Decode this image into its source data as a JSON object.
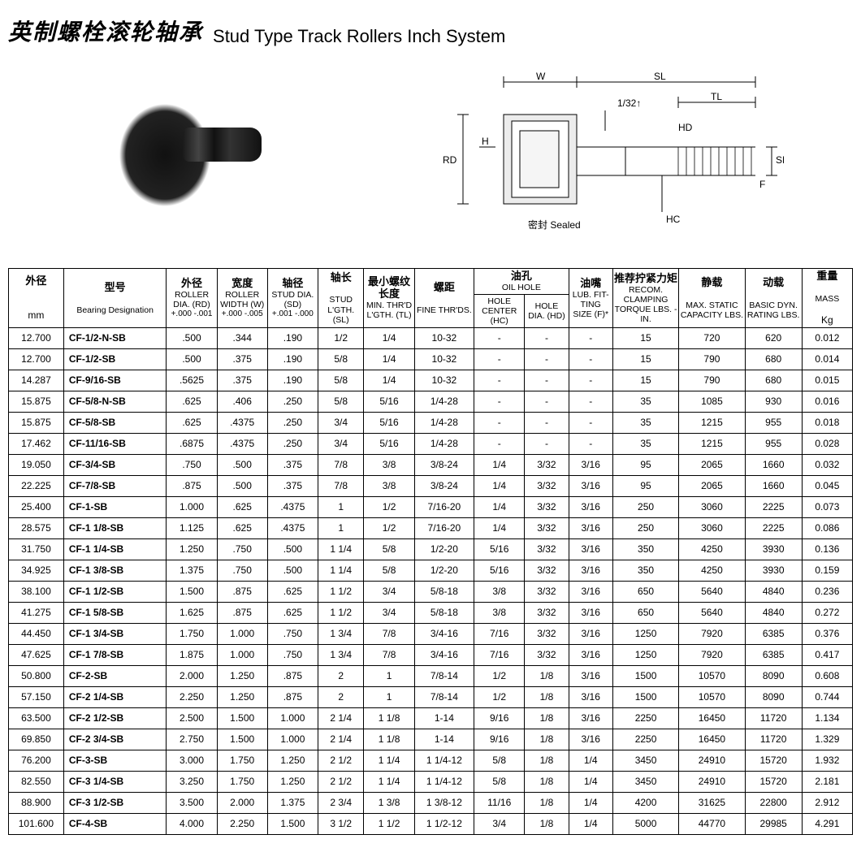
{
  "title": {
    "cn": "英制螺栓滚轮轴承",
    "en": "Stud Type Track Rollers Inch System"
  },
  "diagram_labels": {
    "W": "W",
    "SL": "SL",
    "TL": "TL",
    "HD": "HD",
    "SD": "SD",
    "F": "F",
    "H": "H",
    "RD": "RD",
    "HC": "HC",
    "tol": "1/32↑",
    "sealed_cn": "密封",
    "sealed_en": "Sealed"
  },
  "headers": {
    "c1": {
      "cn": "外径",
      "en": "",
      "unit": "mm"
    },
    "c2": {
      "cn": "型号",
      "en": "Bearing Designation",
      "unit": ""
    },
    "c3": {
      "cn": "外径",
      "en": "ROLLER DIA. (RD)",
      "sub": "+.000 -.001"
    },
    "c4": {
      "cn": "宽度",
      "en": "ROLLER WIDTH (W)",
      "sub": "+.000 -.005"
    },
    "c5": {
      "cn": "轴径",
      "en": "STUD DIA. (SD)",
      "sub": "+.001 -.000"
    },
    "c6": {
      "cn": "轴长",
      "en": "STUD L'GTH. (SL)"
    },
    "c7": {
      "cn": "最小螺纹长度",
      "en": "MIN. THR'D L'GTH. (TL)"
    },
    "c8": {
      "cn": "螺距",
      "en": "FINE THR'DS."
    },
    "c9": {
      "cn": "油孔",
      "en": "OIL HOLE"
    },
    "c9a": {
      "en": "HOLE CENTER (HC)"
    },
    "c9b": {
      "en": "HOLE DIA. (HD)"
    },
    "c10": {
      "cn": "油嘴",
      "en": "LUB. FIT-TING SIZE (F)*"
    },
    "c11": {
      "cn": "推荐拧紧力矩",
      "en": "RECOM. CLAMPING TORQUE LBS. - IN."
    },
    "c12": {
      "cn": "静载",
      "en": "MAX. STATIC CAPACITY LBS."
    },
    "c13": {
      "cn": "动载",
      "en": "BASIC DYN. RATING LBS."
    },
    "c14": {
      "cn": "重量",
      "en": "MASS",
      "unit": "Kg"
    }
  },
  "rows": [
    [
      "12.700",
      "CF-1/2-N-SB",
      ".500",
      ".344",
      ".190",
      "1/2",
      "1/4",
      "10-32",
      "-",
      "-",
      "-",
      "15",
      "720",
      "620",
      "0.012"
    ],
    [
      "12.700",
      "CF-1/2-SB",
      ".500",
      ".375",
      ".190",
      "5/8",
      "1/4",
      "10-32",
      "-",
      "-",
      "-",
      "15",
      "790",
      "680",
      "0.014"
    ],
    [
      "14.287",
      "CF-9/16-SB",
      ".5625",
      ".375",
      ".190",
      "5/8",
      "1/4",
      "10-32",
      "-",
      "-",
      "-",
      "15",
      "790",
      "680",
      "0.015"
    ],
    [
      "15.875",
      "CF-5/8-N-SB",
      ".625",
      ".406",
      ".250",
      "5/8",
      "5/16",
      "1/4-28",
      "-",
      "-",
      "-",
      "35",
      "1085",
      "930",
      "0.016"
    ],
    [
      "15.875",
      "CF-5/8-SB",
      ".625",
      ".4375",
      ".250",
      "3/4",
      "5/16",
      "1/4-28",
      "-",
      "-",
      "-",
      "35",
      "1215",
      "955",
      "0.018"
    ],
    [
      "17.462",
      "CF-11/16-SB",
      ".6875",
      ".4375",
      ".250",
      "3/4",
      "5/16",
      "1/4-28",
      "-",
      "-",
      "-",
      "35",
      "1215",
      "955",
      "0.028"
    ],
    [
      "19.050",
      "CF-3/4-SB",
      ".750",
      ".500",
      ".375",
      "7/8",
      "3/8",
      "3/8-24",
      "1/4",
      "3/32",
      "3/16",
      "95",
      "2065",
      "1660",
      "0.032"
    ],
    [
      "22.225",
      "CF-7/8-SB",
      ".875",
      ".500",
      ".375",
      "7/8",
      "3/8",
      "3/8-24",
      "1/4",
      "3/32",
      "3/16",
      "95",
      "2065",
      "1660",
      "0.045"
    ],
    [
      "25.400",
      "CF-1-SB",
      "1.000",
      ".625",
      ".4375",
      "1",
      "1/2",
      "7/16-20",
      "1/4",
      "3/32",
      "3/16",
      "250",
      "3060",
      "2225",
      "0.073"
    ],
    [
      "28.575",
      "CF-1 1/8-SB",
      "1.125",
      ".625",
      ".4375",
      "1",
      "1/2",
      "7/16-20",
      "1/4",
      "3/32",
      "3/16",
      "250",
      "3060",
      "2225",
      "0.086"
    ],
    [
      "31.750",
      "CF-1 1/4-SB",
      "1.250",
      ".750",
      ".500",
      "1 1/4",
      "5/8",
      "1/2-20",
      "5/16",
      "3/32",
      "3/16",
      "350",
      "4250",
      "3930",
      "0.136"
    ],
    [
      "34.925",
      "CF-1 3/8-SB",
      "1.375",
      ".750",
      ".500",
      "1 1/4",
      "5/8",
      "1/2-20",
      "5/16",
      "3/32",
      "3/16",
      "350",
      "4250",
      "3930",
      "0.159"
    ],
    [
      "38.100",
      "CF-1 1/2-SB",
      "1.500",
      ".875",
      ".625",
      "1 1/2",
      "3/4",
      "5/8-18",
      "3/8",
      "3/32",
      "3/16",
      "650",
      "5640",
      "4840",
      "0.236"
    ],
    [
      "41.275",
      "CF-1 5/8-SB",
      "1.625",
      ".875",
      ".625",
      "1 1/2",
      "3/4",
      "5/8-18",
      "3/8",
      "3/32",
      "3/16",
      "650",
      "5640",
      "4840",
      "0.272"
    ],
    [
      "44.450",
      "CF-1 3/4-SB",
      "1.750",
      "1.000",
      ".750",
      "1 3/4",
      "7/8",
      "3/4-16",
      "7/16",
      "3/32",
      "3/16",
      "1250",
      "7920",
      "6385",
      "0.376"
    ],
    [
      "47.625",
      "CF-1 7/8-SB",
      "1.875",
      "1.000",
      ".750",
      "1 3/4",
      "7/8",
      "3/4-16",
      "7/16",
      "3/32",
      "3/16",
      "1250",
      "7920",
      "6385",
      "0.417"
    ],
    [
      "50.800",
      "CF-2-SB",
      "2.000",
      "1.250",
      ".875",
      "2",
      "1",
      "7/8-14",
      "1/2",
      "1/8",
      "3/16",
      "1500",
      "10570",
      "8090",
      "0.608"
    ],
    [
      "57.150",
      "CF-2 1/4-SB",
      "2.250",
      "1.250",
      ".875",
      "2",
      "1",
      "7/8-14",
      "1/2",
      "1/8",
      "3/16",
      "1500",
      "10570",
      "8090",
      "0.744"
    ],
    [
      "63.500",
      "CF-2 1/2-SB",
      "2.500",
      "1.500",
      "1.000",
      "2 1/4",
      "1 1/8",
      "1-14",
      "9/16",
      "1/8",
      "3/16",
      "2250",
      "16450",
      "11720",
      "1.134"
    ],
    [
      "69.850",
      "CF-2 3/4-SB",
      "2.750",
      "1.500",
      "1.000",
      "2 1/4",
      "1 1/8",
      "1-14",
      "9/16",
      "1/8",
      "3/16",
      "2250",
      "16450",
      "11720",
      "1.329"
    ],
    [
      "76.200",
      "CF-3-SB",
      "3.000",
      "1.750",
      "1.250",
      "2 1/2",
      "1 1/4",
      "1 1/4-12",
      "5/8",
      "1/8",
      "1/4",
      "3450",
      "24910",
      "15720",
      "1.932"
    ],
    [
      "82.550",
      "CF-3 1/4-SB",
      "3.250",
      "1.750",
      "1.250",
      "2 1/2",
      "1 1/4",
      "1 1/4-12",
      "5/8",
      "1/8",
      "1/4",
      "3450",
      "24910",
      "15720",
      "2.181"
    ],
    [
      "88.900",
      "CF-3 1/2-SB",
      "3.500",
      "2.000",
      "1.375",
      "2 3/4",
      "1 3/8",
      "1 3/8-12",
      "11/16",
      "1/8",
      "1/4",
      "4200",
      "31625",
      "22800",
      "2.912"
    ],
    [
      "101.600",
      "CF-4-SB",
      "4.000",
      "2.250",
      "1.500",
      "3 1/2",
      "1 1/2",
      "1 1/2-12",
      "3/4",
      "1/8",
      "1/4",
      "5000",
      "44770",
      "29985",
      "4.291"
    ]
  ]
}
